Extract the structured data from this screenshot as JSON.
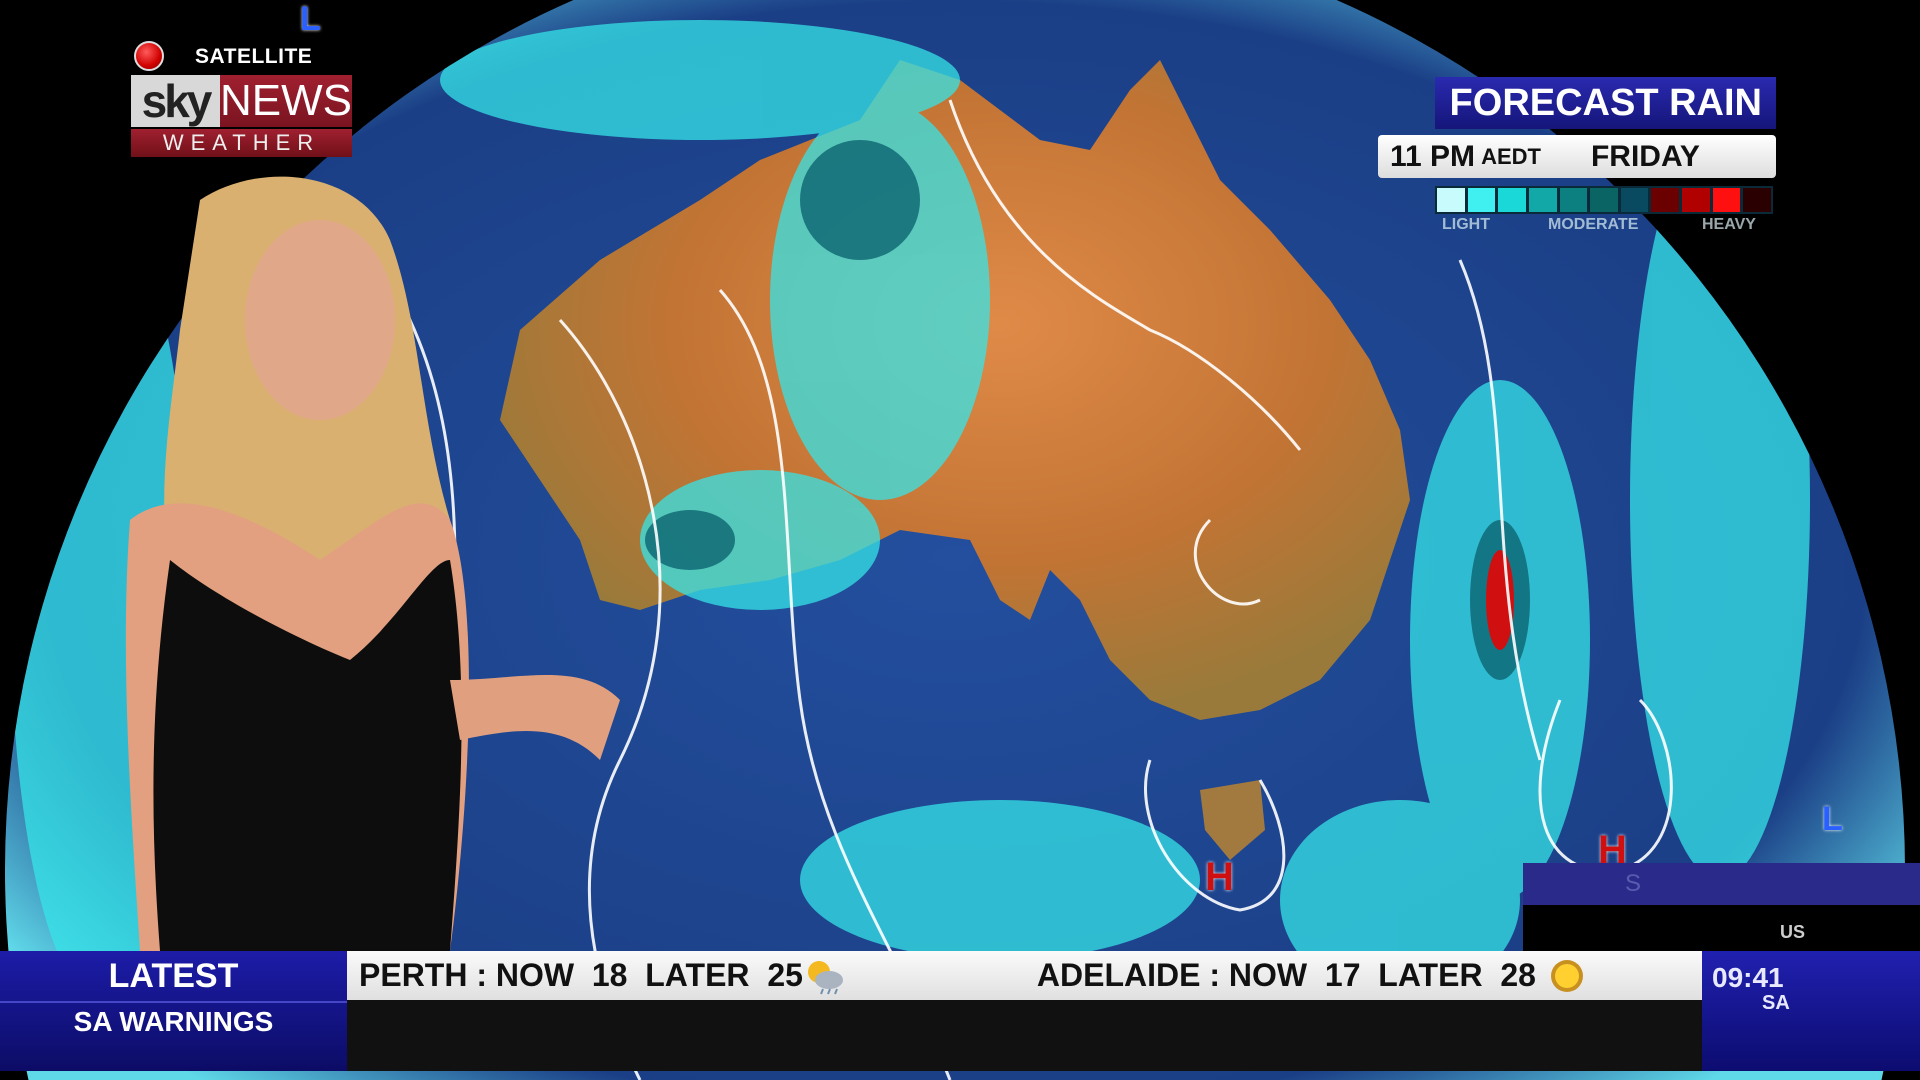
{
  "logo": {
    "badge": "SATELLITE",
    "brand_sky": "sky",
    "brand_news": "NEWS",
    "brand_sub": "WEATHER"
  },
  "forecast": {
    "title": "FORECAST RAIN",
    "time": "11 PM",
    "timezone": "AEDT",
    "day": "FRIDAY",
    "legend_colors": [
      "#c8fbfb",
      "#40f0f0",
      "#1ad8d8",
      "#12a8a8",
      "#0c8080",
      "#0a6464",
      "#0a4a60",
      "#6a0000",
      "#b00000",
      "#ff1010",
      "#2a0000"
    ],
    "legend_labels": [
      "LIGHT",
      "MODERATE",
      "HEAVY"
    ]
  },
  "map": {
    "pressure_markers": [
      {
        "type": "H"
      },
      {
        "type": "H"
      },
      {
        "type": "L"
      },
      {
        "type": "L"
      }
    ]
  },
  "ticker": {
    "left_title": "LATEST",
    "left_sub": "SA WARNINGS",
    "items": [
      {
        "city": "PERTH",
        "now_label": "NOW",
        "now": "18",
        "later_label": "LATER",
        "later": "25",
        "icon": "rain-cloud-sun-icon"
      },
      {
        "city": "ADELAIDE",
        "now_label": "NOW",
        "now": "17",
        "later_label": "LATER",
        "later": "28",
        "icon": "sun-icon"
      }
    ],
    "clock": "09:41",
    "clock_region": "SA"
  },
  "pip": {
    "label": "US",
    "sub": "S"
  },
  "colors": {
    "ticker_blue": "#1c1ca8",
    "forecast_title_bg": "#2a2ab0",
    "ocean": "#1f4a9a",
    "land": "#c8783a",
    "rain": "#30e8e8"
  }
}
